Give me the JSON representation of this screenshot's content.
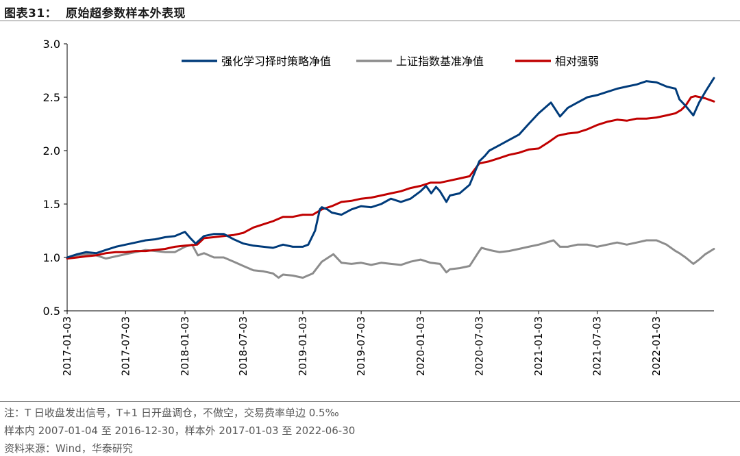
{
  "header": {
    "title": "图表31：  原始超参数样本外表现"
  },
  "notes": {
    "line1": "注：T 日收盘发出信号，T+1 日开盘调仓，不做空，交易费率单边 0.5‰",
    "line2": "样本内 2007-01-04 至 2016-12-30，样本外 2017-01-03 至 2022-06-30",
    "line3": "资料来源：Wind，华泰研究"
  },
  "chart_data": {
    "type": "line",
    "title": "",
    "xlabel": "",
    "ylabel": "",
    "ylim": [
      0.5,
      3.0
    ],
    "yticks": [
      "0.5",
      "1.0",
      "1.5",
      "2.0",
      "2.5",
      "3.0"
    ],
    "x_tick_labels": [
      "2017-01-03",
      "2017-07-03",
      "2018-01-03",
      "2018-07-03",
      "2019-01-03",
      "2019-07-03",
      "2020-01-03",
      "2020-07-03",
      "2021-01-03",
      "2021-07-03",
      "2022-01-03"
    ],
    "x_range": [
      "2017-01-03",
      "2022-06-30"
    ],
    "grid": false,
    "legend_position": "top-right",
    "series": [
      {
        "name": "强化学习择时策略净值",
        "color": "#003b7a",
        "x": [
          "2017-01-03",
          "2017-02-03",
          "2017-03-03",
          "2017-04-03",
          "2017-05-03",
          "2017-06-03",
          "2017-07-03",
          "2017-08-03",
          "2017-09-03",
          "2017-10-03",
          "2017-11-03",
          "2017-12-03",
          "2018-01-03",
          "2018-01-20",
          "2018-02-05",
          "2018-03-03",
          "2018-04-03",
          "2018-05-03",
          "2018-06-03",
          "2018-07-03",
          "2018-08-03",
          "2018-09-03",
          "2018-10-03",
          "2018-11-03",
          "2018-12-03",
          "2019-01-03",
          "2019-01-20",
          "2019-02-10",
          "2019-02-25",
          "2019-03-03",
          "2019-03-20",
          "2019-04-03",
          "2019-05-03",
          "2019-06-03",
          "2019-07-03",
          "2019-08-03",
          "2019-09-03",
          "2019-10-03",
          "2019-11-03",
          "2019-12-03",
          "2020-01-03",
          "2020-01-20",
          "2020-02-05",
          "2020-02-20",
          "2020-03-03",
          "2020-03-23",
          "2020-04-03",
          "2020-05-03",
          "2020-06-03",
          "2020-07-03",
          "2020-07-20",
          "2020-08-03",
          "2020-09-03",
          "2020-10-03",
          "2020-11-03",
          "2020-12-03",
          "2021-01-03",
          "2021-02-10",
          "2021-03-10",
          "2021-04-03",
          "2021-05-03",
          "2021-06-03",
          "2021-07-03",
          "2021-08-03",
          "2021-09-03",
          "2021-10-03",
          "2021-11-03",
          "2021-12-03",
          "2022-01-03",
          "2022-02-03",
          "2022-03-03",
          "2022-03-15",
          "2022-04-03",
          "2022-04-27",
          "2022-05-15",
          "2022-06-03",
          "2022-06-30"
        ],
        "values": [
          1.0,
          1.03,
          1.05,
          1.04,
          1.07,
          1.1,
          1.12,
          1.14,
          1.16,
          1.17,
          1.19,
          1.2,
          1.24,
          1.18,
          1.13,
          1.2,
          1.22,
          1.22,
          1.17,
          1.13,
          1.11,
          1.1,
          1.09,
          1.12,
          1.1,
          1.1,
          1.12,
          1.25,
          1.45,
          1.47,
          1.45,
          1.42,
          1.4,
          1.45,
          1.48,
          1.47,
          1.5,
          1.55,
          1.52,
          1.55,
          1.62,
          1.67,
          1.6,
          1.66,
          1.62,
          1.52,
          1.58,
          1.6,
          1.68,
          1.9,
          1.95,
          2.0,
          2.05,
          2.1,
          2.15,
          2.25,
          2.35,
          2.45,
          2.32,
          2.4,
          2.45,
          2.5,
          2.52,
          2.55,
          2.58,
          2.6,
          2.62,
          2.65,
          2.64,
          2.6,
          2.58,
          2.48,
          2.42,
          2.33,
          2.45,
          2.55,
          2.68
        ]
      },
      {
        "name": "上证指数基准净值",
        "color": "#8c8c8c",
        "x": [
          "2017-01-03",
          "2017-02-03",
          "2017-03-03",
          "2017-04-03",
          "2017-05-03",
          "2017-06-03",
          "2017-07-03",
          "2017-08-03",
          "2017-09-03",
          "2017-10-03",
          "2017-11-03",
          "2017-12-03",
          "2018-01-03",
          "2018-01-25",
          "2018-02-12",
          "2018-03-03",
          "2018-04-03",
          "2018-05-03",
          "2018-06-03",
          "2018-07-03",
          "2018-08-03",
          "2018-09-03",
          "2018-10-03",
          "2018-10-20",
          "2018-11-03",
          "2018-12-03",
          "2019-01-03",
          "2019-02-03",
          "2019-03-03",
          "2019-04-08",
          "2019-05-03",
          "2019-06-03",
          "2019-07-03",
          "2019-08-03",
          "2019-09-03",
          "2019-10-03",
          "2019-11-03",
          "2019-12-03",
          "2020-01-03",
          "2020-02-03",
          "2020-03-03",
          "2020-03-23",
          "2020-04-03",
          "2020-05-03",
          "2020-06-03",
          "2020-07-03",
          "2020-07-10",
          "2020-08-03",
          "2020-09-03",
          "2020-10-03",
          "2020-11-03",
          "2020-12-03",
          "2021-01-03",
          "2021-02-18",
          "2021-03-10",
          "2021-04-03",
          "2021-05-03",
          "2021-06-03",
          "2021-07-03",
          "2021-08-03",
          "2021-09-03",
          "2021-10-03",
          "2021-11-03",
          "2021-12-03",
          "2022-01-03",
          "2022-02-03",
          "2022-03-03",
          "2022-03-15",
          "2022-04-03",
          "2022-04-27",
          "2022-05-15",
          "2022-06-03",
          "2022-06-30"
        ],
        "values": [
          1.0,
          1.02,
          1.03,
          1.02,
          0.99,
          1.01,
          1.03,
          1.05,
          1.07,
          1.06,
          1.05,
          1.05,
          1.1,
          1.12,
          1.02,
          1.04,
          1.0,
          1.0,
          0.96,
          0.92,
          0.88,
          0.87,
          0.85,
          0.81,
          0.84,
          0.83,
          0.81,
          0.85,
          0.96,
          1.03,
          0.95,
          0.94,
          0.95,
          0.93,
          0.95,
          0.94,
          0.93,
          0.96,
          0.98,
          0.95,
          0.94,
          0.86,
          0.89,
          0.9,
          0.92,
          1.06,
          1.09,
          1.07,
          1.05,
          1.06,
          1.08,
          1.1,
          1.12,
          1.16,
          1.1,
          1.1,
          1.12,
          1.12,
          1.1,
          1.12,
          1.14,
          1.12,
          1.14,
          1.16,
          1.16,
          1.12,
          1.06,
          1.04,
          1.0,
          0.94,
          0.98,
          1.03,
          1.08
        ]
      },
      {
        "name": "相对强弱",
        "color": "#c00000",
        "x": [
          "2017-01-03",
          "2017-02-03",
          "2017-03-03",
          "2017-04-03",
          "2017-05-03",
          "2017-06-03",
          "2017-07-03",
          "2017-08-03",
          "2017-09-03",
          "2017-10-03",
          "2017-11-03",
          "2017-12-03",
          "2018-01-03",
          "2018-02-10",
          "2018-03-03",
          "2018-04-03",
          "2018-05-03",
          "2018-06-03",
          "2018-07-03",
          "2018-08-03",
          "2018-09-03",
          "2018-10-03",
          "2018-11-03",
          "2018-12-03",
          "2019-01-03",
          "2019-02-03",
          "2019-03-03",
          "2019-04-03",
          "2019-05-03",
          "2019-06-03",
          "2019-07-03",
          "2019-08-03",
          "2019-09-03",
          "2019-10-03",
          "2019-11-03",
          "2019-12-03",
          "2020-01-03",
          "2020-02-03",
          "2020-03-03",
          "2020-04-03",
          "2020-05-03",
          "2020-06-03",
          "2020-07-03",
          "2020-08-03",
          "2020-09-03",
          "2020-10-03",
          "2020-11-03",
          "2020-12-03",
          "2021-01-03",
          "2021-02-03",
          "2021-03-03",
          "2021-04-03",
          "2021-05-03",
          "2021-06-03",
          "2021-07-03",
          "2021-08-03",
          "2021-09-03",
          "2021-10-03",
          "2021-11-03",
          "2021-12-03",
          "2022-01-03",
          "2022-02-03",
          "2022-03-03",
          "2022-03-20",
          "2022-04-03",
          "2022-04-20",
          "2022-05-03",
          "2022-06-03",
          "2022-06-30"
        ],
        "values": [
          0.99,
          1.0,
          1.01,
          1.02,
          1.04,
          1.05,
          1.05,
          1.06,
          1.06,
          1.07,
          1.08,
          1.1,
          1.11,
          1.12,
          1.18,
          1.19,
          1.2,
          1.21,
          1.23,
          1.28,
          1.31,
          1.34,
          1.38,
          1.38,
          1.4,
          1.4,
          1.45,
          1.48,
          1.52,
          1.53,
          1.55,
          1.56,
          1.58,
          1.6,
          1.62,
          1.65,
          1.67,
          1.7,
          1.7,
          1.72,
          1.74,
          1.76,
          1.88,
          1.9,
          1.93,
          1.96,
          1.98,
          2.01,
          2.02,
          2.08,
          2.14,
          2.16,
          2.17,
          2.2,
          2.24,
          2.27,
          2.29,
          2.28,
          2.3,
          2.3,
          2.31,
          2.33,
          2.35,
          2.38,
          2.42,
          2.5,
          2.51,
          2.49,
          2.46
        ]
      }
    ]
  }
}
